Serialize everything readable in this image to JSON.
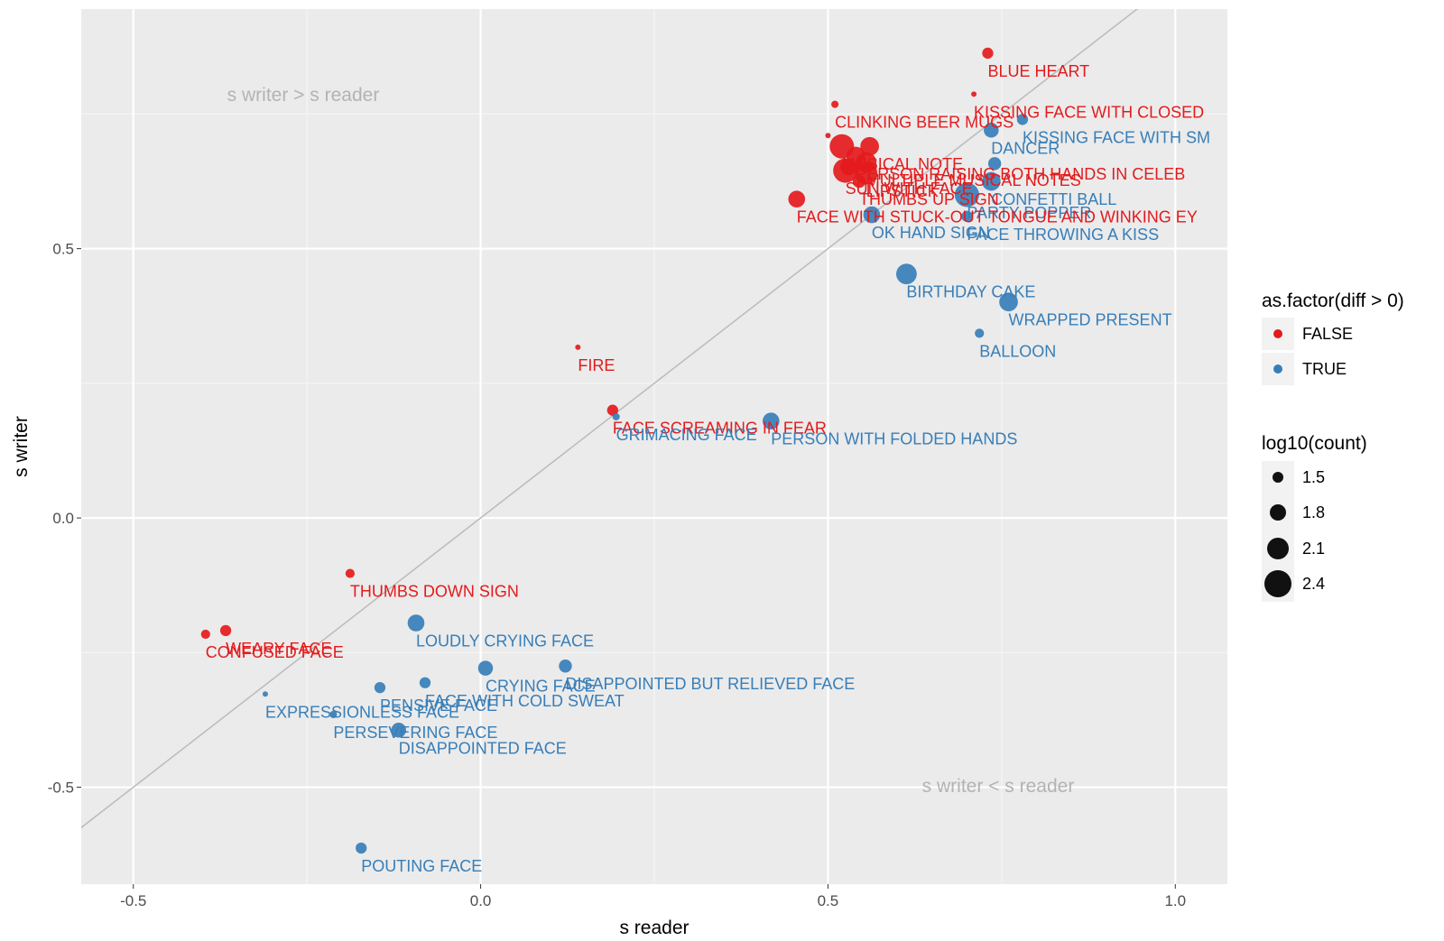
{
  "chart_data": {
    "type": "scatter",
    "xlabel": "s reader",
    "ylabel": "s writer",
    "xlim": [
      -0.575,
      1.075
    ],
    "ylim": [
      -0.68,
      0.945
    ],
    "x_ticks": [
      -0.5,
      0.0,
      0.5,
      1.0
    ],
    "x_tick_labels": [
      "-0.5",
      "0.0",
      "0.5",
      "1.0"
    ],
    "y_ticks": [
      -0.5,
      0.0,
      0.5
    ],
    "y_tick_labels": [
      "-0.5",
      "0.0",
      "0.5"
    ],
    "reference_line": "y = x",
    "annotations": [
      "s writer > s reader",
      "s writer < s reader"
    ],
    "grid": true,
    "legend_position": "right",
    "legend_color": {
      "title": "as.factor(diff > 0)",
      "entries": [
        {
          "label": "FALSE",
          "color": "#e41a1c"
        },
        {
          "label": "TRUE",
          "color": "#377eb8"
        }
      ]
    },
    "legend_size": {
      "title": "log10(count)",
      "entries": [
        "1.5",
        "1.8",
        "2.1",
        "2.4"
      ]
    },
    "points": [
      {
        "label": "BLUE HEART",
        "x": 0.73,
        "y": 0.863,
        "size": 1.8,
        "group": "FALSE"
      },
      {
        "label": "KISSING FACE WITH CLOSED",
        "x": 0.71,
        "y": 0.787,
        "size": 1.5,
        "group": "FALSE"
      },
      {
        "label": "CLINKING BEER MUGS",
        "x": 0.51,
        "y": 0.768,
        "size": 1.6,
        "group": "FALSE"
      },
      {
        "label": "KISSING FACE WITH SM",
        "x": 0.78,
        "y": 0.74,
        "size": 1.8,
        "group": "TRUE"
      },
      {
        "label": "DANCER",
        "x": 0.735,
        "y": 0.72,
        "size": 2.0,
        "group": "TRUE"
      },
      {
        "label": "",
        "x": 0.5,
        "y": 0.71,
        "size": 1.4,
        "group": "FALSE"
      },
      {
        "label": "MUSICAL NOTE",
        "x": 0.52,
        "y": 0.69,
        "size": 2.5,
        "group": "FALSE"
      },
      {
        "label": "",
        "x": 0.56,
        "y": 0.69,
        "size": 2.2,
        "group": "FALSE"
      },
      {
        "label": "PERSON RAISING BOTH HANDS IN CELEB",
        "x": 0.54,
        "y": 0.672,
        "size": 2.2,
        "group": "FALSE"
      },
      {
        "label": "MULTIPLE MUSICAL NOTES",
        "x": 0.555,
        "y": 0.66,
        "size": 2.3,
        "group": "FALSE"
      },
      {
        "label": "",
        "x": 0.53,
        "y": 0.652,
        "size": 2.1,
        "group": "FALSE"
      },
      {
        "label": "",
        "x": 0.74,
        "y": 0.658,
        "size": 1.9,
        "group": "TRUE"
      },
      {
        "label": "SUN WITH FACE",
        "x": 0.525,
        "y": 0.645,
        "size": 2.5,
        "group": "FALSE"
      },
      {
        "label": "LIPSTICK",
        "x": 0.555,
        "y": 0.64,
        "size": 2.4,
        "group": "FALSE"
      },
      {
        "label": "CONFETTI BALL",
        "x": 0.735,
        "y": 0.625,
        "size": 2.2,
        "group": "TRUE"
      },
      {
        "label": "THUMBS UP SIGN",
        "x": 0.545,
        "y": 0.625,
        "size": 1.9,
        "group": "FALSE"
      },
      {
        "label": "PARTY POPPER",
        "x": 0.7,
        "y": 0.6,
        "size": 2.5,
        "group": "TRUE"
      },
      {
        "label": "FACE WITH STUCK-OUT TONGUE AND WINKING EY",
        "x": 0.455,
        "y": 0.592,
        "size": 2.1,
        "group": "FALSE"
      },
      {
        "label": "FACE THROWING A KISS",
        "x": 0.7,
        "y": 0.56,
        "size": 1.8,
        "group": "TRUE"
      },
      {
        "label": "OK HAND SIGN",
        "x": 0.563,
        "y": 0.563,
        "size": 2.1,
        "group": "TRUE"
      },
      {
        "label": "BIRTHDAY CAKE",
        "x": 0.613,
        "y": 0.453,
        "size": 2.3,
        "group": "TRUE"
      },
      {
        "label": "WRAPPED PRESENT",
        "x": 0.76,
        "y": 0.401,
        "size": 2.2,
        "group": "TRUE"
      },
      {
        "label": "BALLOON",
        "x": 0.718,
        "y": 0.343,
        "size": 1.7,
        "group": "TRUE"
      },
      {
        "label": "FIRE",
        "x": 0.14,
        "y": 0.317,
        "size": 1.5,
        "group": "FALSE"
      },
      {
        "label": "FACE SCREAMING IN FEAR",
        "x": 0.19,
        "y": 0.2,
        "size": 1.8,
        "group": "FALSE"
      },
      {
        "label": "GRIMACING FACE",
        "x": 0.195,
        "y": 0.188,
        "size": 1.6,
        "group": "TRUE"
      },
      {
        "label": "PERSON WITH FOLDED HANDS",
        "x": 0.418,
        "y": 0.18,
        "size": 2.1,
        "group": "TRUE"
      },
      {
        "label": "THUMBS DOWN SIGN",
        "x": -0.188,
        "y": -0.103,
        "size": 1.7,
        "group": "FALSE"
      },
      {
        "label": "LOUDLY CRYING FACE",
        "x": -0.093,
        "y": -0.195,
        "size": 2.1,
        "group": "TRUE"
      },
      {
        "label": "WEARY FACE",
        "x": -0.367,
        "y": -0.209,
        "size": 1.8,
        "group": "FALSE"
      },
      {
        "label": "CONFUSED FACE",
        "x": -0.396,
        "y": -0.216,
        "size": 1.7,
        "group": "FALSE"
      },
      {
        "label": "CRYING FACE",
        "x": 0.007,
        "y": -0.279,
        "size": 2.0,
        "group": "TRUE"
      },
      {
        "label": "DISAPPOINTED BUT RELIEVED FACE",
        "x": 0.122,
        "y": -0.275,
        "size": 1.9,
        "group": "TRUE"
      },
      {
        "label": "FACE WITH COLD SWEAT",
        "x": -0.08,
        "y": -0.306,
        "size": 1.8,
        "group": "TRUE"
      },
      {
        "label": "PENSIVE FACE",
        "x": -0.145,
        "y": -0.315,
        "size": 1.8,
        "group": "TRUE"
      },
      {
        "label": "EXPRESSIONLESS FACE",
        "x": -0.31,
        "y": -0.327,
        "size": 1.5,
        "group": "TRUE"
      },
      {
        "label": "PERSEVERING FACE",
        "x": -0.212,
        "y": -0.365,
        "size": 1.6,
        "group": "TRUE"
      },
      {
        "label": "DISAPPOINTED FACE",
        "x": -0.118,
        "y": -0.394,
        "size": 2.0,
        "group": "TRUE"
      },
      {
        "label": "POUTING FACE",
        "x": -0.172,
        "y": -0.613,
        "size": 1.8,
        "group": "TRUE"
      }
    ]
  }
}
